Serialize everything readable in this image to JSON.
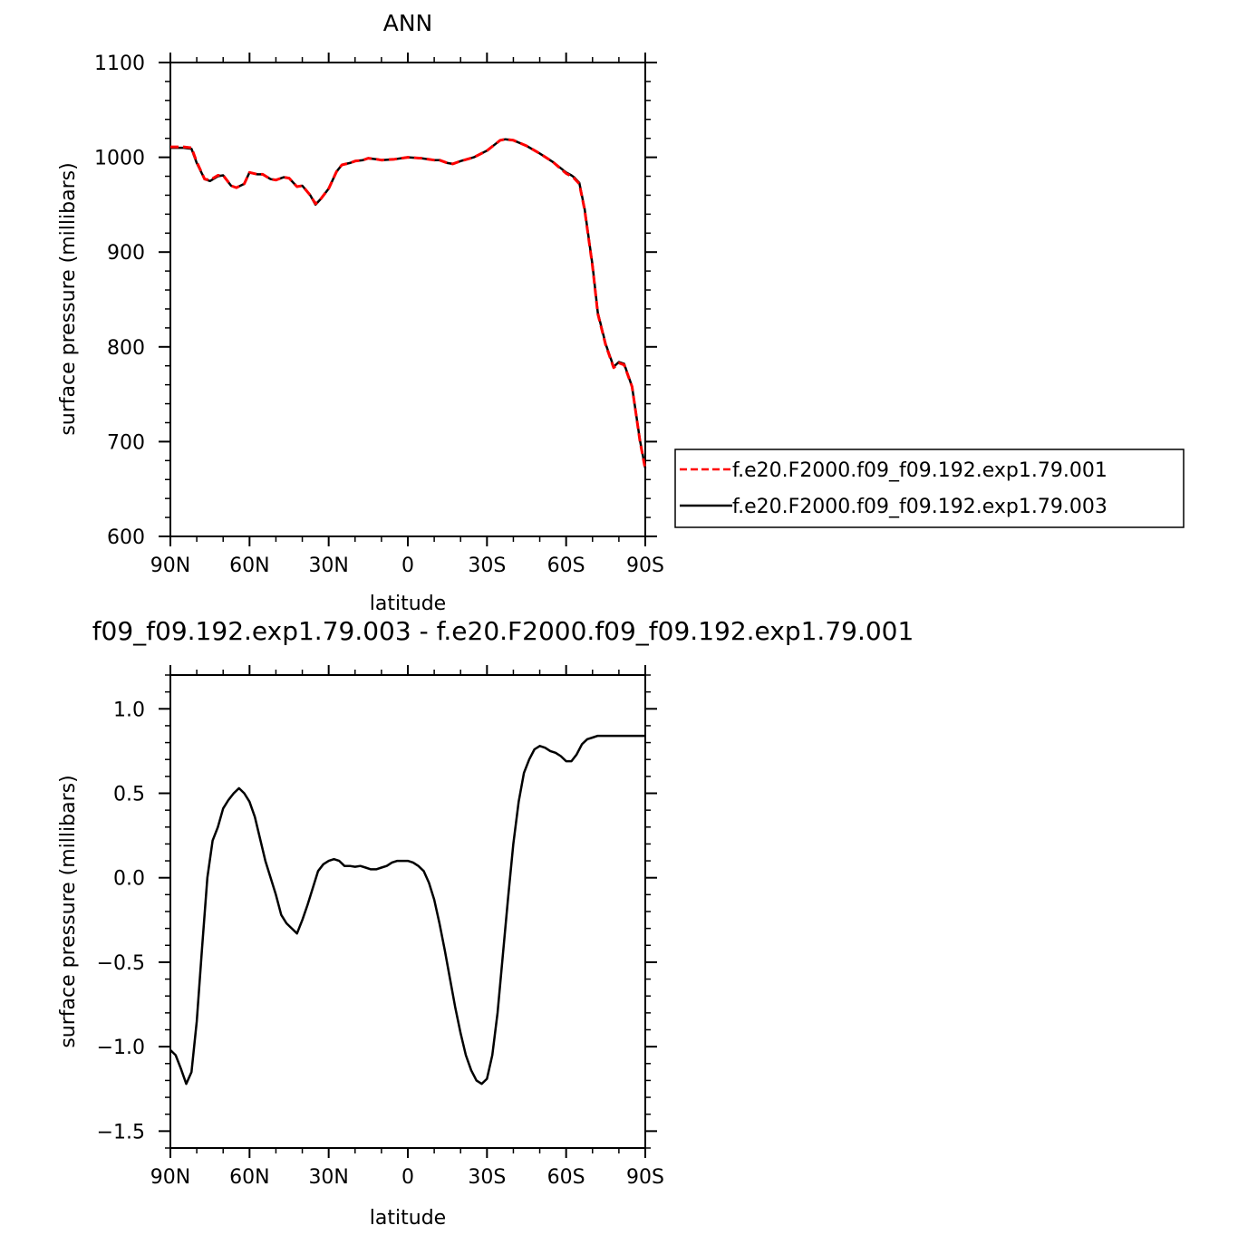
{
  "colors": {
    "series_001": "#ff0000",
    "series_003": "#000000",
    "axes": "#000000",
    "background": "#ffffff"
  },
  "chart_data": [
    {
      "type": "line",
      "title": "ANN",
      "xlabel": "latitude",
      "ylabel": "surface pressure (millibars)",
      "xlim": [
        90,
        -90
      ],
      "ylim": [
        600,
        1100
      ],
      "xticks": [
        90,
        60,
        30,
        0,
        -30,
        -60,
        -90
      ],
      "xtick_labels": [
        "90N",
        "60N",
        "30N",
        "0",
        "30S",
        "60S",
        "90S"
      ],
      "yticks": [
        600,
        700,
        800,
        900,
        1000,
        1100
      ],
      "ytick_labels": [
        "600",
        "700",
        "800",
        "900",
        "1000",
        "1100"
      ],
      "legend_position": "right",
      "x": [
        90,
        85,
        82,
        80,
        77,
        75,
        72,
        70,
        67,
        65,
        62,
        60,
        57,
        55,
        52,
        50,
        47,
        45,
        42,
        40,
        37,
        35,
        33,
        30,
        27,
        25,
        22,
        20,
        17,
        15,
        12,
        10,
        5,
        0,
        -5,
        -10,
        -12,
        -15,
        -17,
        -20,
        -25,
        -30,
        -35,
        -37,
        -40,
        -45,
        -50,
        -55,
        -60,
        -62,
        -63,
        -65,
        -67,
        -70,
        -72,
        -75,
        -78,
        -80,
        -82,
        -85,
        -88,
        -90
      ],
      "series": [
        {
          "name": "f.e20.F2000.f09_f09.192.exp1.79.001",
          "style": "dashed",
          "values": [
            1011,
            1011,
            1010,
            995,
            977,
            976,
            981,
            981,
            970,
            968,
            972,
            984,
            982,
            982,
            977,
            976,
            979,
            978,
            969,
            970,
            960,
            951,
            956,
            967,
            985,
            992,
            994,
            996,
            997,
            999,
            998,
            997,
            998,
            1000,
            999,
            997,
            997,
            994,
            993,
            996,
            1000,
            1007,
            1018,
            1019,
            1018,
            1012,
            1004,
            995,
            983,
            980,
            978,
            972,
            945,
            885,
            835,
            802,
            778,
            783,
            781,
            758,
            700,
            671
          ]
        },
        {
          "name": "f.e20.F2000.f09_f09.192.exp1.79.003",
          "style": "solid",
          "values": [
            1010,
            1010,
            1009,
            994,
            977,
            975,
            980,
            981,
            970,
            968,
            972,
            984,
            982,
            982,
            977,
            976,
            979,
            978,
            969,
            970,
            960,
            950,
            956,
            967,
            985,
            992,
            994,
            996,
            997,
            999,
            998,
            997,
            998,
            1000,
            999,
            997,
            997,
            994,
            993,
            996,
            1000,
            1007,
            1018,
            1019,
            1018,
            1012,
            1004,
            995,
            984,
            981,
            979,
            973,
            946,
            886,
            836,
            803,
            779,
            784,
            782,
            758,
            701,
            672
          ]
        }
      ]
    },
    {
      "type": "line",
      "title": "f09_f09.192.exp1.79.003 - f.e20.F2000.f09_f09.192.exp1.79.001",
      "xlabel": "latitude",
      "ylabel": "surface pressure (millibars)",
      "xlim": [
        90,
        -90
      ],
      "ylim": [
        -1.6,
        1.2
      ],
      "xticks": [
        90,
        60,
        30,
        0,
        -30,
        -60,
        -90
      ],
      "xtick_labels": [
        "90N",
        "60N",
        "30N",
        "0",
        "30S",
        "60S",
        "90S"
      ],
      "yticks": [
        -1.5,
        -1.0,
        -0.5,
        0.0,
        0.5,
        1.0
      ],
      "ytick_labels": [
        "−1.5",
        "−1.0",
        "−0.5",
        "0.0",
        "0.5",
        "1.0"
      ],
      "x": [
        90,
        88,
        86,
        84,
        82,
        80,
        78,
        76,
        74,
        72,
        70,
        68,
        66,
        64,
        62,
        60,
        58,
        56,
        54,
        52,
        50,
        48,
        46,
        44,
        42,
        40,
        38,
        36,
        34,
        32,
        30,
        28,
        26,
        24,
        22,
        20,
        18,
        16,
        14,
        12,
        10,
        8,
        6,
        4,
        2,
        0,
        -2,
        -4,
        -6,
        -8,
        -10,
        -12,
        -14,
        -16,
        -18,
        -20,
        -22,
        -24,
        -26,
        -28,
        -30,
        -32,
        -34,
        -36,
        -38,
        -40,
        -42,
        -44,
        -46,
        -48,
        -50,
        -52,
        -54,
        -56,
        -58,
        -60,
        -62,
        -64,
        -66,
        -68,
        -70,
        -72,
        -74,
        -76,
        -78,
        -80,
        -82,
        -84,
        -86,
        -88,
        -90
      ],
      "series": [
        {
          "values": [
            -1.02,
            -1.05,
            -1.13,
            -1.22,
            -1.15,
            -0.85,
            -0.42,
            0.0,
            0.22,
            0.3,
            0.41,
            0.46,
            0.5,
            0.53,
            0.5,
            0.45,
            0.36,
            0.23,
            0.1,
            0.0,
            -0.1,
            -0.22,
            -0.27,
            -0.3,
            -0.33,
            -0.25,
            -0.16,
            -0.06,
            0.04,
            0.08,
            0.1,
            0.11,
            0.1,
            0.07,
            0.07,
            0.065,
            0.07,
            0.06,
            0.05,
            0.05,
            0.06,
            0.07,
            0.09,
            0.1,
            0.1,
            0.1,
            0.09,
            0.07,
            0.04,
            -0.03,
            -0.13,
            -0.27,
            -0.43,
            -0.6,
            -0.77,
            -0.92,
            -1.05,
            -1.14,
            -1.2,
            -1.22,
            -1.19,
            -1.05,
            -0.8,
            -0.46,
            -0.12,
            0.2,
            0.45,
            0.62,
            0.7,
            0.76,
            0.78,
            0.77,
            0.75,
            0.74,
            0.72,
            0.69,
            0.69,
            0.73,
            0.79,
            0.82,
            0.83,
            0.84,
            0.84,
            0.84,
            0.84,
            0.84,
            0.84,
            0.84,
            0.84,
            0.84,
            0.84
          ]
        }
      ]
    }
  ]
}
